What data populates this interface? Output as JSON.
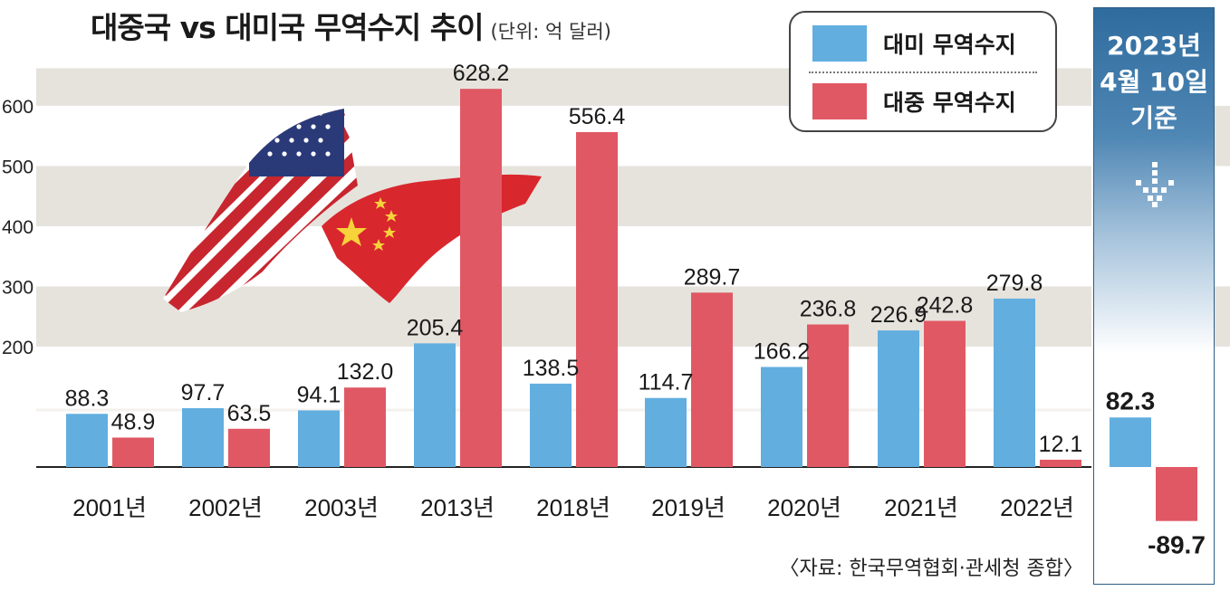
{
  "title": "대중국 vs 대미국 무역수지 추이",
  "unit": "(단위: 억 달러)",
  "legend": {
    "us_label": "대미 무역수지",
    "cn_label": "대중 무역수지"
  },
  "highlight": {
    "line1": "2023년",
    "line2": "4월 10일",
    "line3": "기준"
  },
  "source": "〈자료: 한국무역협회·관세청 종합〉",
  "colors": {
    "us": "#62aedf",
    "cn": "#e05864",
    "band": "#e6e3dd",
    "panel": "#2f6c9e"
  },
  "chart_data": {
    "type": "bar",
    "categories": [
      "2001년",
      "2002년",
      "2003년",
      "2013년",
      "2018년",
      "2019년",
      "2020년",
      "2021년",
      "2022년",
      ""
    ],
    "series": [
      {
        "name": "대미 무역수지",
        "values": [
          88.3,
          97.7,
          94.1,
          205.4,
          138.5,
          114.7,
          166.2,
          226.9,
          279.8,
          82.3
        ],
        "labels": [
          "88.3",
          "97.7",
          "94.1",
          "205.4",
          "138.5",
          "114.7",
          "166.2",
          "226.9",
          "279.8",
          "82.3"
        ]
      },
      {
        "name": "대중 무역수지",
        "values": [
          48.9,
          63.5,
          132.0,
          628.2,
          556.4,
          289.7,
          236.8,
          242.8,
          12.1,
          -89.7
        ],
        "labels": [
          "48.9",
          "63.5",
          "132.0",
          "628.2",
          "556.4",
          "289.7",
          "236.8",
          "242.8",
          "12.1",
          "-89.7"
        ]
      }
    ],
    "yticks": [
      "200",
      "300",
      "400",
      "500",
      "600"
    ],
    "ylim": [
      -100,
      650
    ],
    "grid": "alternating bands"
  }
}
